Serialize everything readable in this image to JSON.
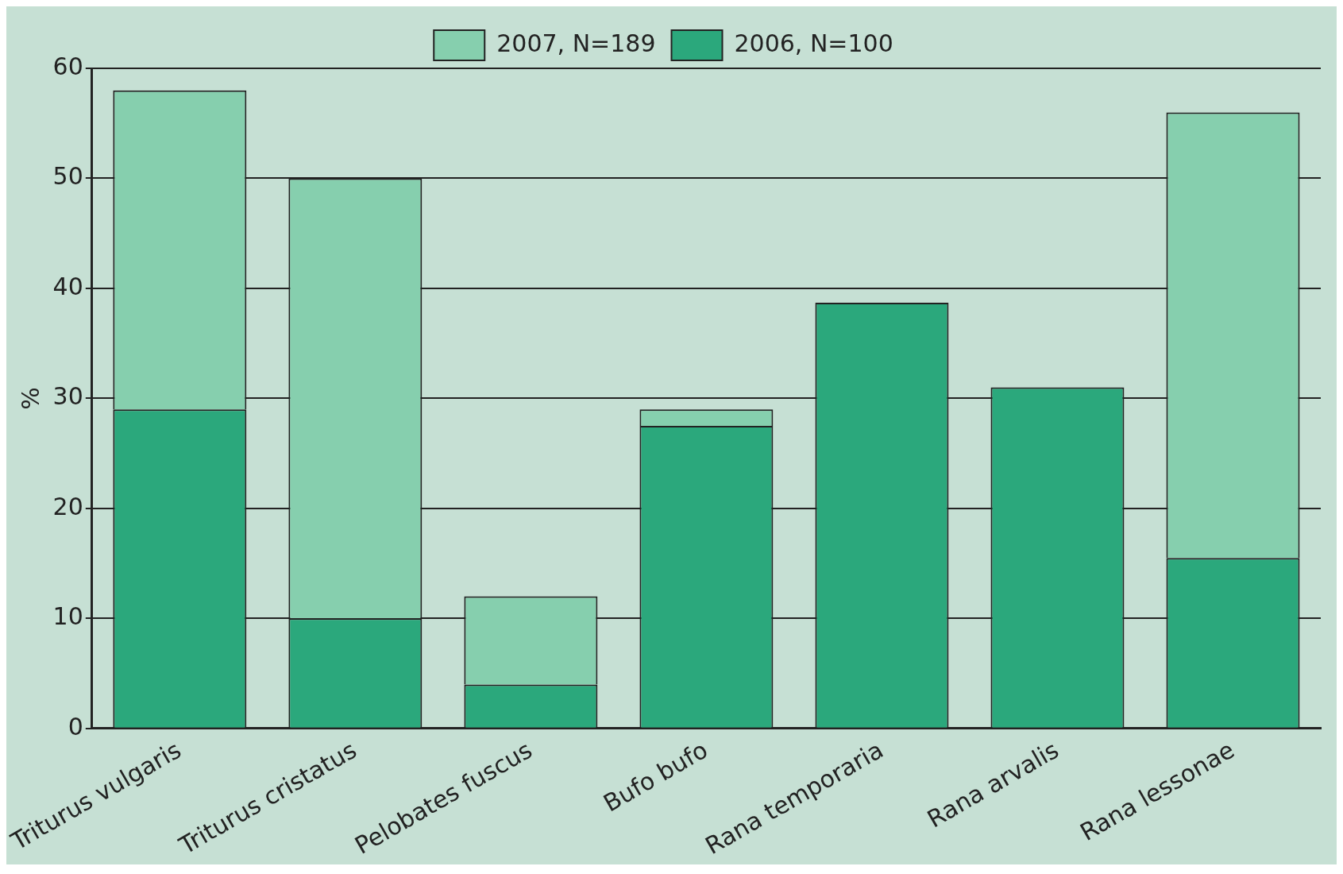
{
  "chart_data": {
    "type": "bar",
    "stacked": true,
    "ylabel": "%",
    "categories": [
      "Triturus vulgaris",
      "Triturus cristatus",
      "Pelobates fuscus",
      "Bufo bufo",
      "Rana temporaria",
      "Rana arvalis",
      "Rana lessonae"
    ],
    "series": [
      {
        "name": "2006, N=100",
        "color": "#2ba87c",
        "values": [
          29,
          10,
          4,
          27.5,
          38.7,
          31,
          15.5
        ]
      },
      {
        "name": "2007, N=189",
        "color": "#86cfae",
        "values": [
          29,
          40,
          8,
          1.5,
          0,
          0,
          40.5
        ]
      }
    ],
    "ylim": [
      0,
      60
    ],
    "yticks": [
      0,
      10,
      20,
      30,
      40,
      50,
      60
    ],
    "grid": "y",
    "legend": "top"
  }
}
